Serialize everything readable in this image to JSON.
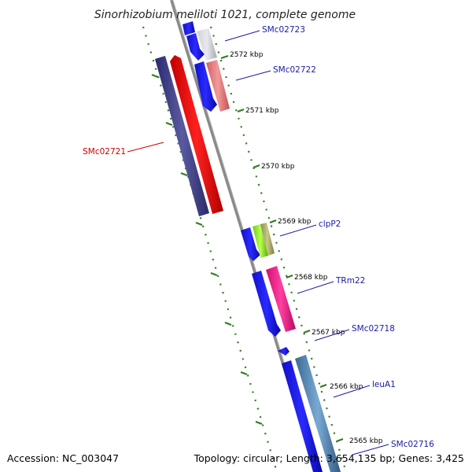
{
  "title": "Sinorhizobium meliloti 1021, complete genome",
  "footer": {
    "accession": "Accession: NC_003047",
    "summary": "Topology: circular; Length: 3,654,135 bp; Genes: 3,425"
  },
  "colors": {
    "backbone": "#8a8a8a",
    "ticks": "#2e7d1f",
    "label_blue": "#1a1aa8",
    "label_red": "#cc0000"
  },
  "tick_labels": [
    "2572 kbp",
    "2571 kbp",
    "2570 kbp",
    "2569 kbp",
    "2568 kbp",
    "2567 kbp",
    "2566 kbp",
    "2565 kbp"
  ],
  "gene_labels": [
    {
      "id": "SMc02723",
      "color": "#1a1aa8"
    },
    {
      "id": "SMc02722",
      "color": "#1a1aa8"
    },
    {
      "id": "SMc02721",
      "color": "#cc0000"
    },
    {
      "id": "clpP2",
      "color": "#1a1aa8"
    },
    {
      "id": "TRm22",
      "color": "#1a1aa8"
    },
    {
      "id": "SMc02718",
      "color": "#1a1aa8"
    },
    {
      "id": "leuA1",
      "color": "#1a1aa8"
    },
    {
      "id": "SMc02716",
      "color": "#1a1aa8"
    }
  ]
}
